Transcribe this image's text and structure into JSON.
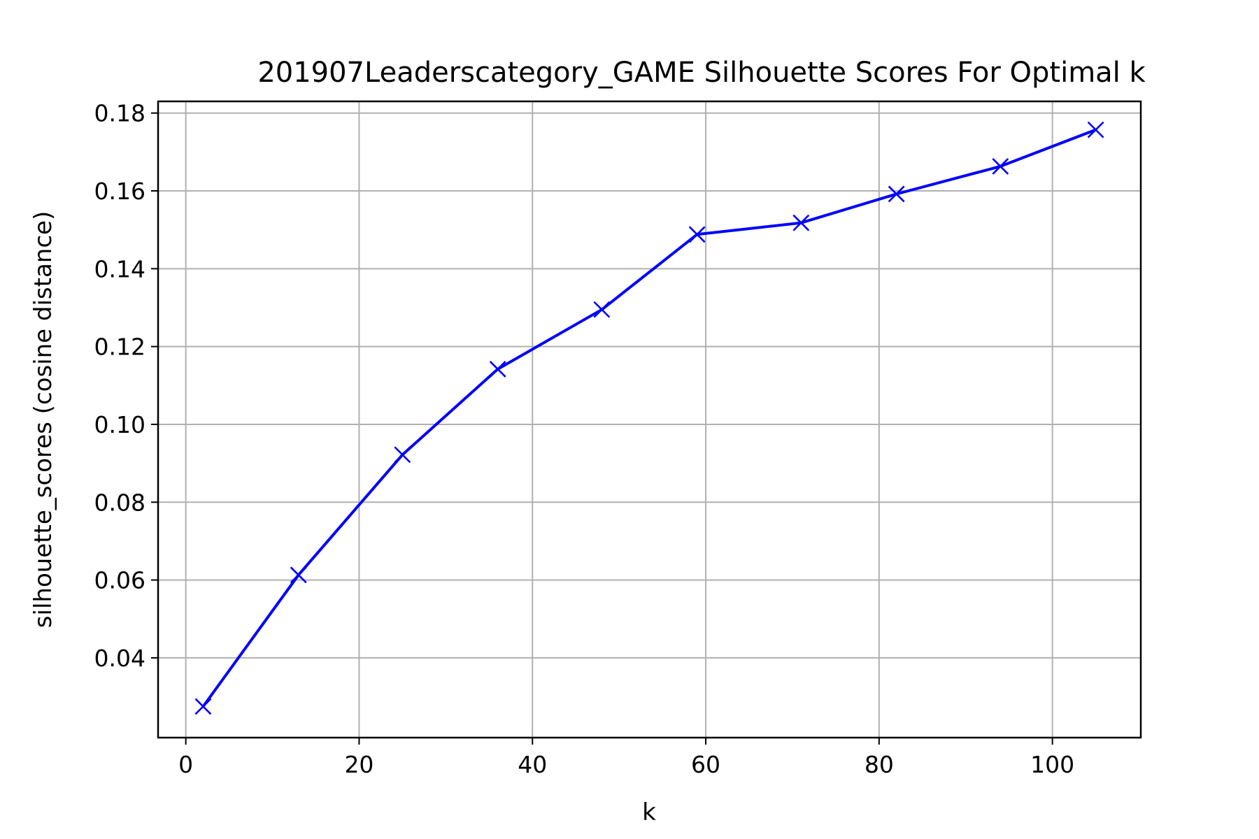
{
  "chart_data": {
    "type": "line",
    "title": "201907Leaderscategory_GAME Silhouette Scores For Optimal k",
    "xlabel": "k",
    "ylabel": "silhouette_scores (cosine distance)",
    "xlim": [
      -3.2,
      110.2
    ],
    "ylim": [
      0.0195,
      0.183
    ],
    "xticks": [
      0,
      20,
      40,
      60,
      80,
      100
    ],
    "yticks": [
      0.04,
      0.06,
      0.08,
      0.1,
      0.12,
      0.14,
      0.16,
      0.18
    ],
    "ytick_labels": [
      "0.04",
      "0.06",
      "0.08",
      "0.10",
      "0.12",
      "0.14",
      "0.16",
      "0.18"
    ],
    "grid": true,
    "series": [
      {
        "color": "#0000ff",
        "marker": "x",
        "x": [
          2,
          13,
          25,
          36,
          48,
          59,
          71,
          82,
          94,
          105
        ],
        "y": [
          0.0275,
          0.0613,
          0.0922,
          0.1142,
          0.1295,
          0.1488,
          0.1518,
          0.1592,
          0.1663,
          0.1757
        ]
      }
    ]
  }
}
